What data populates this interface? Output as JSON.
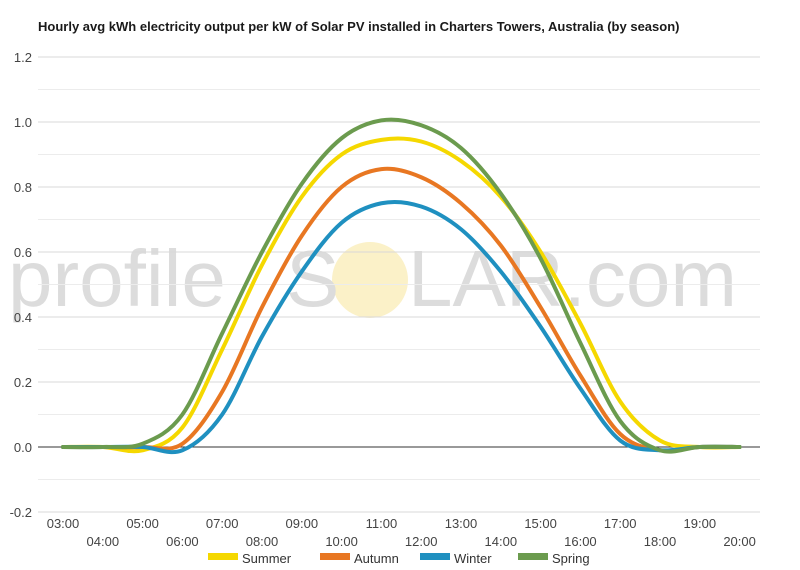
{
  "chart_data": {
    "type": "line",
    "title": "Hourly avg kWh electricity output per kW of Solar PV installed in Charters Towers, Australia (by season)",
    "xlabel": "",
    "ylabel": "",
    "ylim": [
      -0.2,
      1.2
    ],
    "yticks": [
      "1.2",
      "1.0",
      "0.8",
      "0.6",
      "0.4",
      "0.2",
      "0.0",
      "-0.2"
    ],
    "ytick_values": [
      1.2,
      1.0,
      0.8,
      0.6,
      0.4,
      0.2,
      0.0,
      -0.2
    ],
    "x": [
      "03:00",
      "04:00",
      "05:00",
      "06:00",
      "07:00",
      "08:00",
      "09:00",
      "10:00",
      "11:00",
      "12:00",
      "13:00",
      "14:00",
      "15:00",
      "16:00",
      "17:00",
      "18:00",
      "19:00",
      "20:00"
    ],
    "grid": true,
    "legend_position": "bottom",
    "watermark": {
      "left": "profile",
      "mid": "S",
      "right": "LAR.com"
    },
    "series": [
      {
        "name": "Summer",
        "color": "#f5d800",
        "values": [
          0,
          0,
          -0.01,
          0.06,
          0.3,
          0.56,
          0.77,
          0.9,
          0.945,
          0.94,
          0.88,
          0.77,
          0.6,
          0.38,
          0.14,
          0.02,
          0,
          0
        ]
      },
      {
        "name": "Autumn",
        "color": "#e87722",
        "values": [
          0,
          0,
          0,
          0.01,
          0.17,
          0.43,
          0.65,
          0.8,
          0.855,
          0.83,
          0.75,
          0.62,
          0.43,
          0.22,
          0.04,
          -0.01,
          0,
          0
        ]
      },
      {
        "name": "Winter",
        "color": "#1f90c0",
        "values": [
          0,
          0,
          0,
          -0.01,
          0.1,
          0.34,
          0.54,
          0.69,
          0.75,
          0.74,
          0.67,
          0.54,
          0.37,
          0.18,
          0.02,
          -0.01,
          0,
          0
        ]
      },
      {
        "name": "Spring",
        "color": "#6b9b4e",
        "values": [
          0,
          0,
          0.01,
          0.1,
          0.35,
          0.6,
          0.81,
          0.95,
          1.005,
          0.99,
          0.92,
          0.78,
          0.58,
          0.32,
          0.08,
          -0.01,
          0,
          0
        ]
      }
    ]
  }
}
